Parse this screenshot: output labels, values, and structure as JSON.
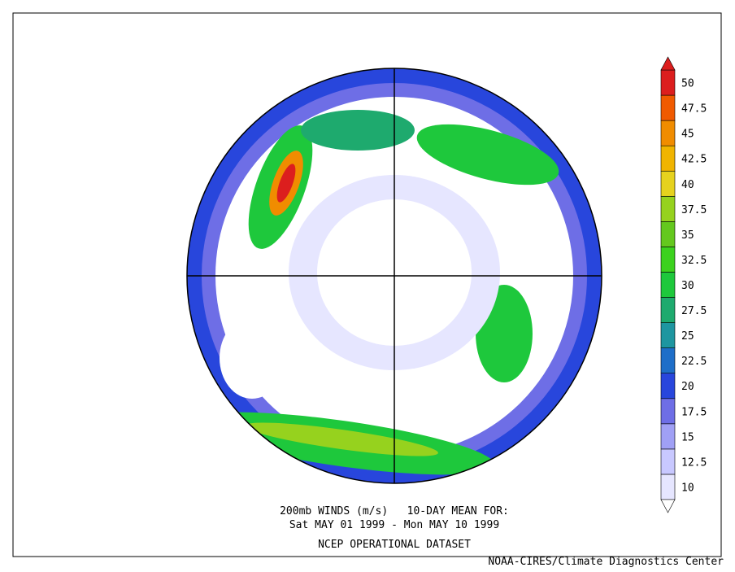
{
  "map": {
    "title_lines": [
      "200mb WINDS (m/s)   10-DAY MEAN FOR:",
      "Sat MAY 01 1999 - Mon MAY 10 1999",
      "NCEP OPERATIONAL DATASET"
    ],
    "credit": "NOAA-CIRES/Climate Diagnostics Center",
    "colorbar": {
      "levels": [
        10,
        12.5,
        15,
        17.5,
        20,
        22.5,
        25,
        27.5,
        30,
        32.5,
        35,
        37.5,
        40,
        42.5,
        45,
        47.5,
        50
      ],
      "colors": [
        "#e6e6ff",
        "#c8c8ff",
        "#a0a0f5",
        "#6e6ee6",
        "#2846dc",
        "#1e6ec8",
        "#1e96a0",
        "#1eaa6e",
        "#1ec83c",
        "#3cd21e",
        "#64c81e",
        "#96d21e",
        "#e6d21e",
        "#f0b400",
        "#f08c00",
        "#f05a00",
        "#dc1e1e"
      ]
    }
  }
}
